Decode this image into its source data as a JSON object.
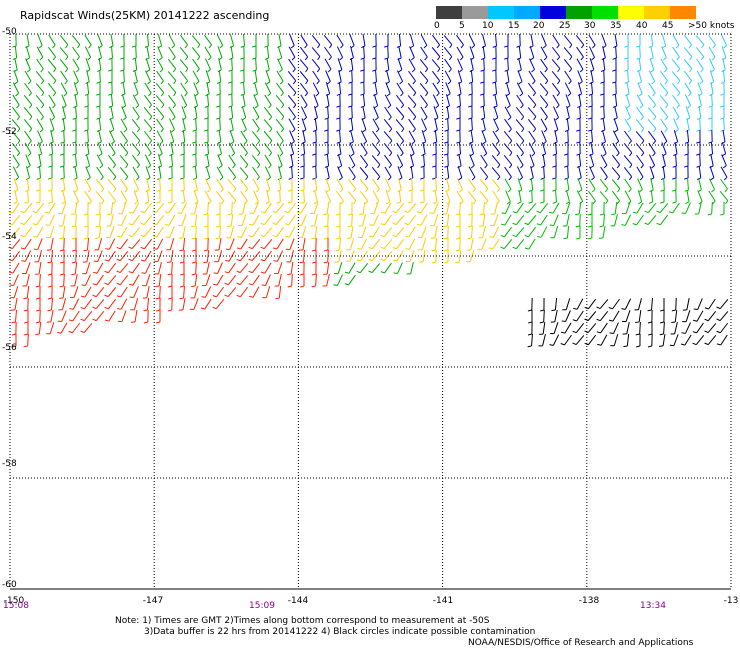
{
  "title": "Rapidscat Winds(25KM) 20141222 ascending",
  "colorbar": {
    "colors": [
      "#3f3f3f",
      "#9a9a9a",
      "#00c8ff",
      "#00aaff",
      "#0000dd",
      "#00a000",
      "#00e000",
      "#ffff00",
      "#ffd000",
      "#ff8800",
      "#ff5500",
      "#ff0000",
      "#dd0000",
      "#8b4513",
      "#d2b48c",
      "#8b008b",
      "#3a0078"
    ],
    "labels": [
      "0",
      "5",
      "10",
      "15",
      "20",
      "25",
      "30",
      "35",
      "40",
      "45",
      ">50 knots"
    ]
  },
  "axes": {
    "lat_labels": [
      "-50",
      "-52",
      "-54",
      "-56",
      "-58",
      "-60"
    ],
    "lon_labels": [
      "-150",
      "-147",
      "-144",
      "-141",
      "-138",
      "-13"
    ]
  },
  "times": [
    "15:08",
    "15:09",
    "13:34"
  ],
  "notes": {
    "line1": "Note: 1) Times are GMT 2)Times along bottom correspond to measurement at -50S",
    "line2": "3)Data buffer is 22 hrs from 20141222 4) Black circles indicate possible contamination",
    "line3": "NOAA/NESDIS/Office of Research and Applications"
  },
  "map": {
    "lon_range": [
      -150,
      -135
    ],
    "lat_range": [
      -60,
      -50
    ],
    "regions": [
      {
        "speed": "green (15-20 kt)",
        "area": "northwest, -150 to -144, -50 to -53"
      },
      {
        "speed": "blue (10-15 kt)",
        "area": "north-central, -144 to -138, -50 to -54"
      },
      {
        "speed": "cyan (5-10 kt)",
        "area": "northeast, -138 to -135, -50 to -52"
      },
      {
        "speed": "yellow (20-25 kt)",
        "area": "west-central band, -54 to -55"
      },
      {
        "speed": "red (30-35 kt)",
        "area": "southwest, -150 to -143, -54.5 to -56"
      },
      {
        "speed": "black (possible contamination)",
        "area": "-139 to -135, -55 to -56"
      }
    ]
  }
}
